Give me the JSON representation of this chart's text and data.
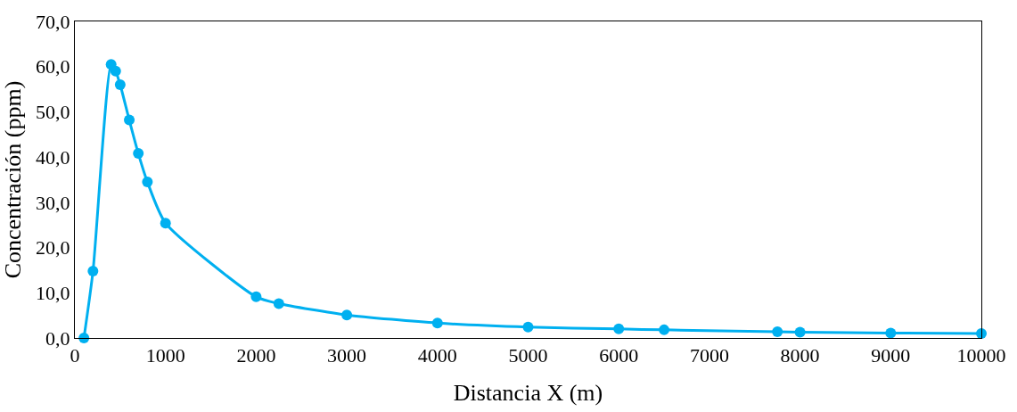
{
  "chart_data": {
    "type": "line",
    "xlabel": "Distancia X (m)",
    "ylabel": "Concentración (ppm)",
    "x": [
      100,
      200,
      400,
      450,
      500,
      600,
      700,
      800,
      1000,
      2000,
      2250,
      3000,
      4000,
      5000,
      6000,
      6500,
      7750,
      8000,
      9000,
      10000
    ],
    "series": [
      {
        "color": "#00b0f0",
        "values": [
          0,
          14.8,
          60.5,
          59,
          56,
          48.2,
          40.8,
          34.5,
          25.4,
          9.1,
          7.6,
          5.1,
          3.3,
          2.4,
          2.0,
          1.8,
          1.4,
          1.3,
          1.1,
          1.0
        ]
      }
    ],
    "xlim": [
      0,
      10000
    ],
    "xticks": [
      0,
      1000,
      2000,
      3000,
      4000,
      5000,
      6000,
      7000,
      8000,
      9000,
      10000
    ],
    "ylim": [
      0,
      70
    ],
    "yticks": [
      {
        "value": 0,
        "label": "0,0"
      },
      {
        "value": 10,
        "label": "10,0"
      },
      {
        "value": 20,
        "label": "20,0"
      },
      {
        "value": 30,
        "label": "30,0"
      },
      {
        "value": 40,
        "label": "40,0"
      },
      {
        "value": 50,
        "label": "50,0"
      },
      {
        "value": 60,
        "label": "60,0"
      },
      {
        "value": 70,
        "label": "70,0"
      }
    ],
    "marker": "circle",
    "line_style": "solid"
  }
}
